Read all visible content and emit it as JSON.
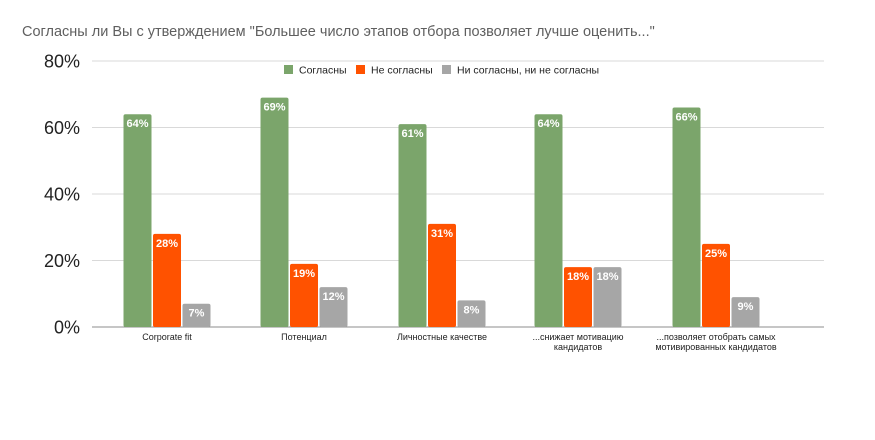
{
  "title": "Согласны ли Вы с утверждением \"Большее число этапов отбора позволяет лучше оценить...\"",
  "chart_data": {
    "type": "bar",
    "title": "Согласны ли Вы с утверждением \"Большее число этапов отбора позволяет лучше оценить...\"",
    "xlabel": "",
    "ylabel": "",
    "ylim": [
      0,
      80
    ],
    "yticks": [
      "0%",
      "20%",
      "40%",
      "60%",
      "80%"
    ],
    "ytick_values": [
      0,
      20,
      40,
      60,
      80
    ],
    "grid": true,
    "legend_position": "top",
    "categories": [
      [
        "Corporate fit"
      ],
      [
        "Потенциал"
      ],
      [
        "Личностные качестве"
      ],
      [
        "...снижает мотивацию",
        "кандидатов"
      ],
      [
        "...позволяет отобрать самых",
        "мотивированных кандидатов"
      ]
    ],
    "series": [
      {
        "name": "Согласны",
        "color": "#7ba56b",
        "values": [
          64,
          69,
          61,
          64,
          66
        ],
        "labels": [
          "64%",
          "69%",
          "61%",
          "64%",
          "66%"
        ]
      },
      {
        "name": "Не согласны",
        "color": "#ff5200",
        "values": [
          28,
          19,
          31,
          18,
          25
        ],
        "labels": [
          "28%",
          "19%",
          "31%",
          "18%",
          "25%"
        ]
      },
      {
        "name": "Ни согласны, ни не согласны",
        "color": "#a6a6a6",
        "values": [
          7,
          12,
          8,
          18,
          9
        ],
        "labels": [
          "7%",
          "12%",
          "8%",
          "18%",
          "9%"
        ]
      }
    ]
  }
}
